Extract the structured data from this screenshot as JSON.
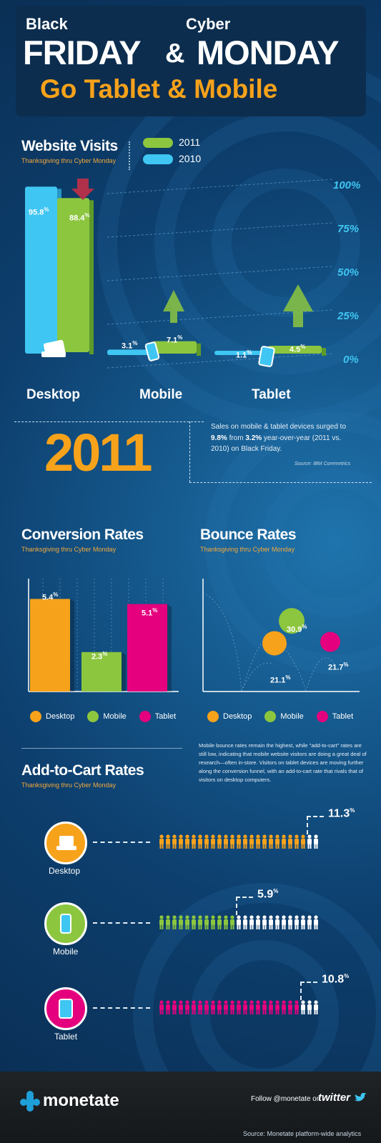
{
  "header": {
    "black": "Black",
    "cyber": "Cyber",
    "friday": "FRIDAY",
    "amp": "&",
    "monday": "MONDAY",
    "subtitle": "Go Tablet & Mobile"
  },
  "website_visits": {
    "title": "Website Visits",
    "subtitle": "Thanksgiving thru Cyber Monday",
    "legend": [
      "2011",
      "2010"
    ],
    "axis_ticks": [
      "100%",
      "75%",
      "50%",
      "25%",
      "0%"
    ],
    "categories": [
      "Desktop",
      "Mobile",
      "Tablet"
    ],
    "labels_2010": [
      "95.8",
      "3.1",
      "1.1"
    ],
    "labels_2011": [
      "88.4",
      "7.1",
      "4.5"
    ],
    "percent_sign": "%"
  },
  "year_callout": {
    "year": "2011",
    "text_a": "Sales on mobile & tablet devices surged to ",
    "v1": "9.8%",
    "text_b": " from ",
    "v2": "3.2%",
    "text_c": " year-over-year (2011 vs. 2010) on Black Friday.",
    "source": "Source: IBM Coremetrics"
  },
  "conversion": {
    "title": "Conversion Rates",
    "subtitle": "Thanksgiving thru Cyber Monday",
    "labels": [
      "5.4",
      "2.3",
      "5.1"
    ]
  },
  "bounce": {
    "title": "Bounce Rates",
    "subtitle": "Thanksgiving thru Cyber Monday",
    "labels": [
      "21.1",
      "30.9",
      "21.7"
    ]
  },
  "legend_devices": [
    "Desktop",
    "Mobile",
    "Tablet"
  ],
  "note": "Mobile bounce rates remain the highest, while \"add-to-cart\" rates are still low, indicating that mobile website visitors are doing a great deal of research—often in-store. Visitors on tablet devices are moving further along the conversion funnel, with an add-to-cart rate that rivals that of visitors on desktop computers.",
  "add_to_cart": {
    "title": "Add-to-Cart Rates",
    "subtitle": "Thanksgiving thru Cyber Monday",
    "devices": [
      "Desktop",
      "Mobile",
      "Tablet"
    ],
    "labels": [
      "11.3",
      "5.9",
      "10.8"
    ]
  },
  "footer": {
    "brand": "monetate",
    "follow": "Follow @monetate on",
    "twitter": "twitter",
    "source": "Source: Monetate platform-wide analytics"
  },
  "colors": {
    "desktop": "#f7a21b",
    "mobile": "#8cc63f",
    "tablet": "#e5007e",
    "bar2010": "#3fc6f3",
    "bar2011": "#8cc63f",
    "accent": "#f7a21b"
  },
  "icons": [
    "down-arrow-icon",
    "up-arrow-icon",
    "laptop-icon",
    "phone-icon",
    "tablet-icon",
    "person-icon",
    "monetate-logo",
    "twitter-bird-icon"
  ],
  "chart_data": [
    {
      "type": "bar",
      "title": "Website Visits",
      "categories": [
        "Desktop",
        "Mobile",
        "Tablet"
      ],
      "series": [
        {
          "name": "2010",
          "values": [
            95.8,
            3.1,
            1.1
          ]
        },
        {
          "name": "2011",
          "values": [
            88.4,
            7.1,
            4.5
          ]
        }
      ],
      "ylim": [
        0,
        100
      ],
      "legend": "top"
    },
    {
      "type": "bar",
      "title": "Conversion Rates",
      "categories": [
        "Desktop",
        "Mobile",
        "Tablet"
      ],
      "values": [
        5.4,
        2.3,
        5.1
      ],
      "legend": "bottom"
    },
    {
      "type": "scatter",
      "title": "Bounce Rates",
      "categories": [
        "Desktop",
        "Mobile",
        "Tablet"
      ],
      "values": [
        21.1,
        30.9,
        21.7
      ],
      "legend": "bottom"
    },
    {
      "type": "bar",
      "title": "Add-to-Cart Rates",
      "categories": [
        "Desktop",
        "Mobile",
        "Tablet"
      ],
      "values": [
        11.3,
        5.9,
        10.8
      ]
    }
  ]
}
